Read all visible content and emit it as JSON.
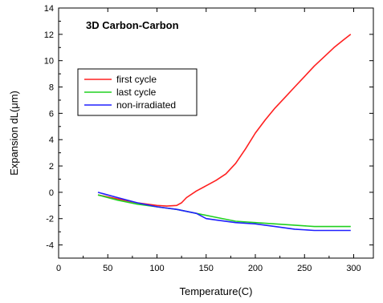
{
  "chart_data": {
    "type": "line",
    "title": "3D Carbon-Carbon",
    "xlabel": "Temperature(C)",
    "ylabel": "Expansion dL(μm)",
    "xlim": [
      0,
      320
    ],
    "ylim": [
      -5,
      14
    ],
    "xticks": [
      0,
      50,
      100,
      150,
      200,
      250,
      300
    ],
    "yticks": [
      -4,
      -2,
      0,
      2,
      4,
      6,
      8,
      10,
      12,
      14
    ],
    "grid": false,
    "legend_position": "upper-left",
    "series": [
      {
        "name": "first cycle",
        "color": "#ff2020",
        "x": [
          40,
          60,
          80,
          100,
          110,
          120,
          125,
          130,
          140,
          150,
          160,
          170,
          180,
          190,
          200,
          210,
          220,
          230,
          240,
          250,
          260,
          270,
          280,
          290,
          297
        ],
        "y": [
          -0.2,
          -0.5,
          -0.8,
          -1.0,
          -1.05,
          -1.0,
          -0.8,
          -0.4,
          0.1,
          0.5,
          0.9,
          1.4,
          2.2,
          3.3,
          4.5,
          5.5,
          6.4,
          7.2,
          8.0,
          8.8,
          9.6,
          10.3,
          11.0,
          11.6,
          12.0
        ]
      },
      {
        "name": "last cycle",
        "color": "#20d020",
        "x": [
          40,
          60,
          80,
          100,
          120,
          140,
          160,
          180,
          200,
          220,
          240,
          260,
          280,
          297
        ],
        "y": [
          -0.2,
          -0.6,
          -0.9,
          -1.1,
          -1.3,
          -1.6,
          -1.9,
          -2.2,
          -2.3,
          -2.4,
          -2.5,
          -2.6,
          -2.6,
          -2.6
        ]
      },
      {
        "name": "non-irradiated",
        "color": "#2020ff",
        "x": [
          40,
          60,
          80,
          100,
          120,
          140,
          150,
          160,
          180,
          200,
          220,
          240,
          260,
          280,
          297
        ],
        "y": [
          0.0,
          -0.4,
          -0.8,
          -1.1,
          -1.3,
          -1.6,
          -2.0,
          -2.1,
          -2.3,
          -2.4,
          -2.6,
          -2.8,
          -2.9,
          -2.9,
          -2.9
        ]
      }
    ]
  }
}
